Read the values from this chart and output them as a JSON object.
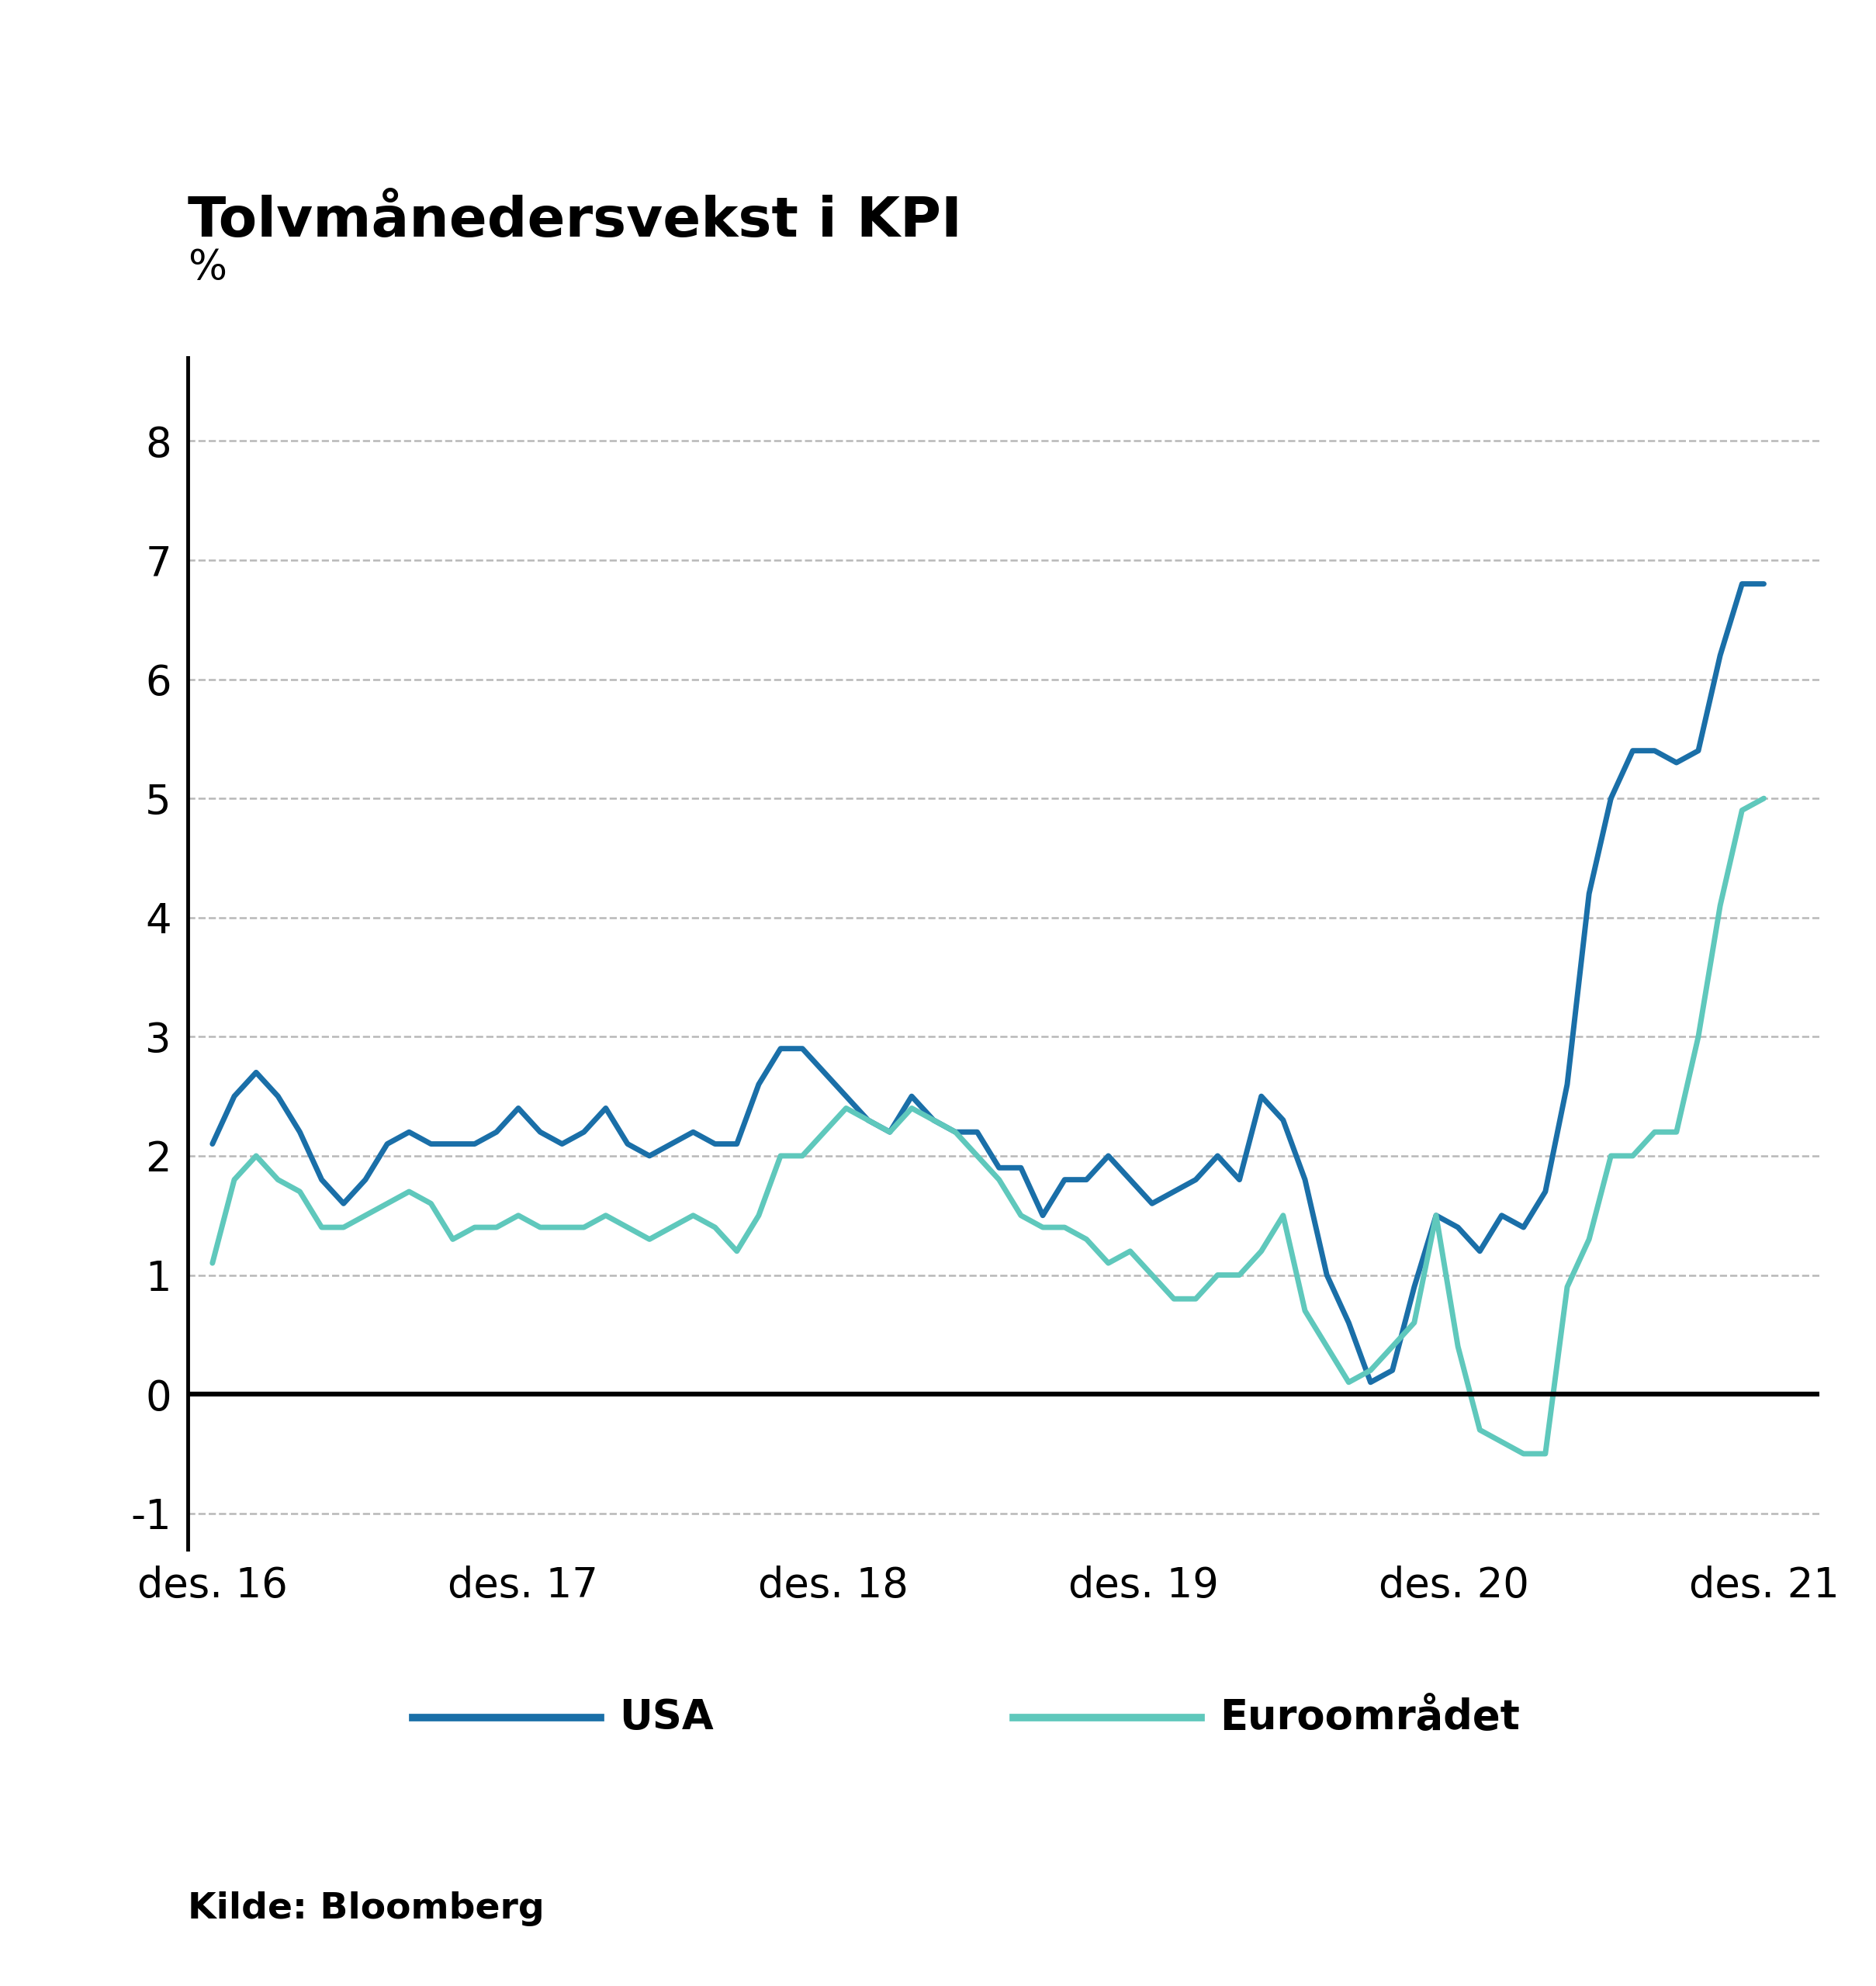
{
  "title": "Tolvmånedersvekst i KPI",
  "ylabel": "%",
  "source": "Kilde: Bloomberg",
  "ylim": [
    -1.3,
    8.7
  ],
  "yticks": [
    -1,
    0,
    1,
    2,
    3,
    4,
    5,
    6,
    7,
    8
  ],
  "xtick_labels": [
    "des. 16",
    "des. 17",
    "des. 18",
    "des. 19",
    "des. 20",
    "des. 21"
  ],
  "color_usa": "#1a6fa8",
  "color_euro": "#5fc8bc",
  "legend_usa": "USA",
  "legend_euro": "Euroområdet",
  "linewidth": 5.0,
  "title_fontsize": 52,
  "tick_fontsize": 38,
  "legend_fontsize": 38,
  "source_fontsize": 34,
  "usa": [
    2.1,
    2.5,
    2.7,
    2.5,
    2.2,
    1.8,
    1.6,
    1.8,
    2.1,
    2.2,
    2.1,
    2.1,
    2.1,
    2.2,
    2.4,
    2.2,
    2.1,
    2.2,
    2.4,
    2.1,
    2.0,
    2.1,
    2.2,
    2.1,
    2.1,
    2.6,
    2.9,
    2.9,
    2.7,
    2.5,
    2.3,
    2.2,
    2.5,
    2.3,
    2.2,
    2.2,
    1.9,
    1.9,
    1.5,
    1.8,
    1.8,
    2.0,
    1.8,
    1.6,
    1.7,
    1.8,
    2.0,
    1.8,
    2.5,
    2.3,
    1.8,
    1.0,
    0.6,
    0.1,
    0.2,
    0.9,
    1.5,
    1.4,
    1.2,
    1.5,
    1.4,
    1.7,
    2.6,
    4.2,
    5.0,
    5.4,
    5.4,
    5.3,
    5.4,
    6.2,
    6.8,
    6.8
  ],
  "euro": [
    1.1,
    1.8,
    2.0,
    1.8,
    1.7,
    1.4,
    1.4,
    1.5,
    1.6,
    1.7,
    1.6,
    1.3,
    1.4,
    1.4,
    1.5,
    1.4,
    1.4,
    1.4,
    1.5,
    1.4,
    1.3,
    1.4,
    1.5,
    1.4,
    1.2,
    1.5,
    2.0,
    2.0,
    2.2,
    2.4,
    2.3,
    2.2,
    2.4,
    2.3,
    2.2,
    2.0,
    1.8,
    1.5,
    1.4,
    1.4,
    1.3,
    1.1,
    1.2,
    1.0,
    0.8,
    0.8,
    1.0,
    1.0,
    1.2,
    1.5,
    0.7,
    0.4,
    0.1,
    0.2,
    0.4,
    0.6,
    1.5,
    0.4,
    -0.3,
    -0.4,
    -0.5,
    -0.5,
    0.9,
    1.3,
    2.0,
    2.0,
    2.2,
    2.2,
    3.0,
    4.1,
    4.9,
    5.0
  ]
}
